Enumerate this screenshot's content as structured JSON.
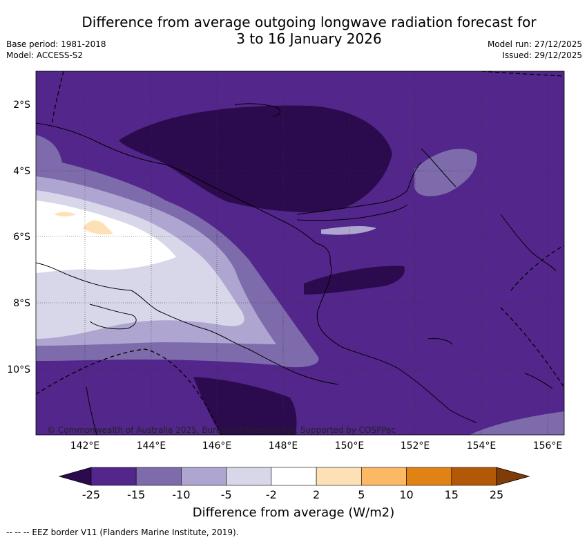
{
  "title_line1": "Difference from average outgoing longwave radiation forecast for",
  "title_line2": "3 to 16 January 2026",
  "base_period": "Base period: 1981-2018",
  "model": "Model: ACCESS-S2",
  "model_run": "Model run: 27/12/2025",
  "issued": "Issued: 29/12/2025",
  "copyright": "© Commonwealth of Australia 2025, Bureau of Meteorology. Supported by COSPPac",
  "lat_labels": [
    "2°S",
    "4°S",
    "6°S",
    "8°S",
    "10°S"
  ],
  "lon_labels": [
    "142°E",
    "144°E",
    "146°E",
    "148°E",
    "150°E",
    "152°E",
    "154°E",
    "156°E"
  ],
  "colorbar": {
    "title": "Difference from average (W/m2)",
    "labels": [
      "-25",
      "-15",
      "-10",
      "-5",
      "-2",
      "2",
      "5",
      "10",
      "15",
      "25"
    ],
    "colors": [
      "#2c0a4e",
      "#52268a",
      "#7d6bab",
      "#aea6d1",
      "#d8d7ea",
      "#ffffff",
      "#fee0b6",
      "#fdb863",
      "#e08214",
      "#b35806",
      "#7f3b08"
    ]
  },
  "footer": "-- -- -- EEZ border V11 (Flanders Marine Institute, 2019)."
}
